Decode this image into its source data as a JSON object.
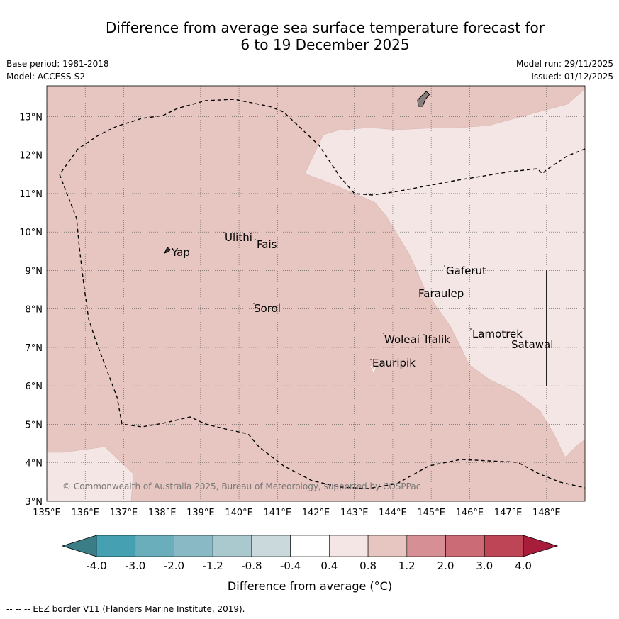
{
  "title": {
    "line1": "Difference from average sea surface temperature forecast for",
    "line2": "6 to 19 December 2025"
  },
  "meta": {
    "base_period": "Base period: 1981-2018",
    "model": "Model: ACCESS-S2",
    "model_run": "Model run: 29/11/2025",
    "issued": "Issued: 01/12/2025"
  },
  "axes": {
    "lon_labels": [
      "135°E",
      "136°E",
      "137°E",
      "138°E",
      "139°E",
      "140°E",
      "141°E",
      "142°E",
      "143°E",
      "144°E",
      "145°E",
      "146°E",
      "147°E",
      "148°E"
    ],
    "lat_labels": [
      "3°N",
      "4°N",
      "5°N",
      "6°N",
      "7°N",
      "8°N",
      "9°N",
      "10°N",
      "11°N",
      "12°N",
      "13°N"
    ],
    "lon_range": [
      135,
      149
    ],
    "lat_range": [
      3,
      13.8
    ]
  },
  "places": [
    "Yap",
    "Ulithi",
    "Fais",
    "Sorol",
    "Gaferut",
    "Faraulep",
    "Lamotrek",
    "Satawal",
    "Woleai",
    "Ifalik",
    "Eauripik"
  ],
  "copyright": "© Commonwealth of Australia 2025, Bureau of Meteorology, supported by COSPPac",
  "colorbar": {
    "ticks": [
      "-4.0",
      "-3.0",
      "-2.0",
      "-1.2",
      "-0.8",
      "-0.4",
      "0.4",
      "0.8",
      "1.2",
      "2.0",
      "3.0",
      "4.0"
    ],
    "colors": [
      "#45a0b1",
      "#6aaebb",
      "#89b9c4",
      "#a9c9cf",
      "#c9d9dc",
      "#ffffff",
      "#f4e6e4",
      "#e7c6c1",
      "#d58f95",
      "#cb6b76",
      "#be4556"
    ],
    "under_color": "#3b7d86",
    "over_color": "#a81d3c",
    "label": "Difference from average (°C)"
  },
  "fill_colors": {
    "band_0.8_1.2": "#e7c6c1",
    "band_0.4_0.8": "#f4e6e4"
  },
  "footer": "-- -- -- EEZ border V11 (Flanders Marine Institute, 2019)."
}
